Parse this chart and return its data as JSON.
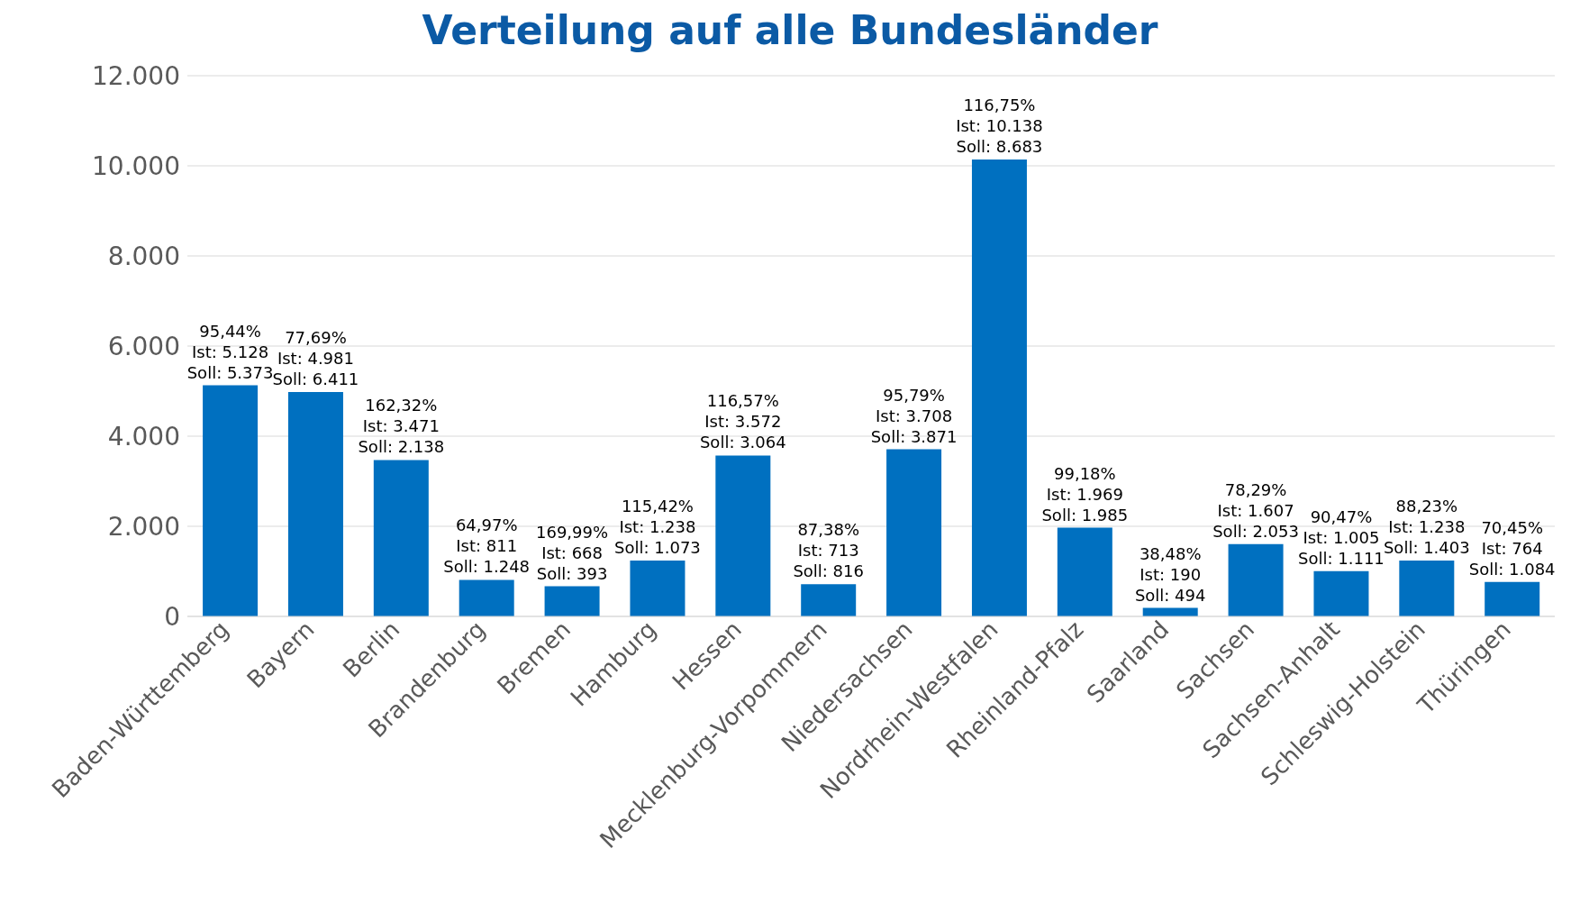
{
  "chart_data": {
    "type": "bar",
    "title": "Verteilung auf alle Bundesländer",
    "categories": [
      "Baden-Württemberg",
      "Bayern",
      "Berlin",
      "Brandenburg",
      "Bremen",
      "Hamburg",
      "Hessen",
      "Mecklenburg-Vorpommern",
      "Niedersachsen",
      "Nordrhein-Westfalen",
      "Rheinland-Pfalz",
      "Saarland",
      "Sachsen",
      "Sachsen-Anhalt",
      "Schleswig-Holstein",
      "Thüringen"
    ],
    "values": [
      5128,
      4981,
      3471,
      811,
      668,
      1238,
      3572,
      713,
      3708,
      10138,
      1969,
      190,
      1607,
      1005,
      1238,
      764
    ],
    "color": "#0070c0",
    "value_labels": [
      "95,44%\nIst: 5.128\nSoll: 5.373",
      "77,69%\nIst: 4.981\nSoll: 6.411",
      "162,32%\nIst: 3.471\nSoll: 2.138",
      "64,97%\nIst: 811\nSoll: 1.248",
      "169,99%\nIst: 668\nSoll: 393",
      "115,42%\nIst: 1.238\nSoll: 1.073",
      "116,57%\nIst: 3.572\nSoll: 3.064",
      "87,38%\nIst: 713\nSoll: 816",
      "95,79%\nIst: 3.708\nSoll: 3.871",
      "116,75%\nIst: 10.138\nSoll: 8.683",
      "99,18%\nIst: 1.969\nSoll: 1.985",
      "38,48%\nIst: 190\nSoll: 494",
      "78,29%\nIst: 1.607\nSoll: 2.053",
      "90,47%\nIst: 1.005\nSoll: 1.111",
      "88,23%\nIst: 1.238\nSoll: 1.403",
      "70,45%\nIst: 764\nSoll: 1.084"
    ],
    "ylim": [
      0,
      12000
    ],
    "yticks": [
      0,
      {
        "value": 2000,
        "label": "2.000"
      },
      {
        "value": 4000,
        "label": "4.000"
      },
      {
        "value": 6000,
        "label": "6.000"
      },
      {
        "value": 8000,
        "label": "8.000"
      },
      {
        "value": 10000,
        "label": "10.000"
      },
      {
        "value": 12000,
        "label": "12.000"
      }
    ],
    "grid": "y",
    "legend": false
  }
}
